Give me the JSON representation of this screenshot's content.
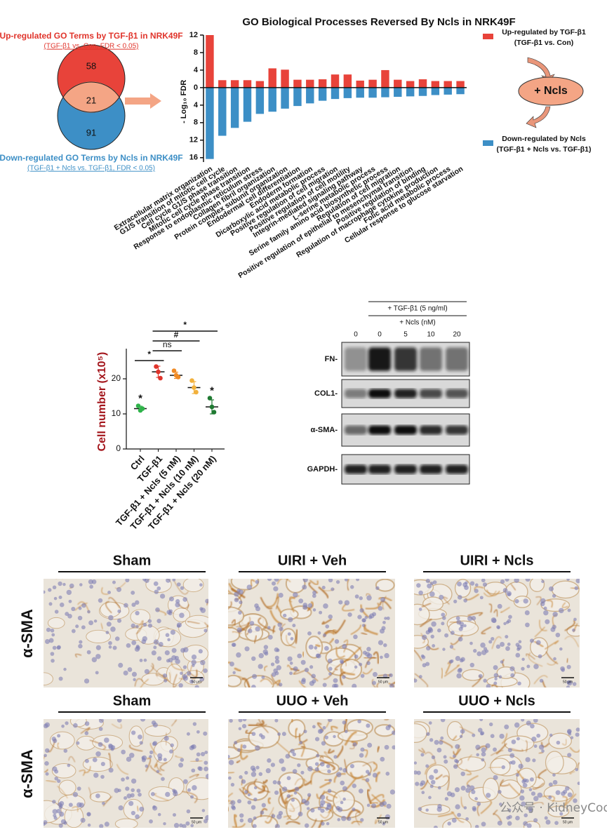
{
  "venn": {
    "up_title": "Up-regulated GO Terms by TGF-β1 in NRK49F",
    "up_subtitle": "(TGF-β1 vs. Con, FDR < 0.05)",
    "down_title": "Down-regulated GO Terms by Ncls in NRK49F",
    "down_subtitle": "(TGF-β1 + Ncls vs. TGF-β1, FDR < 0.05)",
    "counts": [
      58,
      21,
      91
    ]
  },
  "treatment_label": "+ Ncls",
  "chart_data": [
    {
      "type": "bar",
      "title": "GO Biological Processes Reversed By Ncls in NRK49F",
      "ylabel": "- Log₁₀ FDR",
      "categories": [
        "Extracellular matrix organization",
        "G1/S transition of mitotic cell cycle",
        "Cell cycle G1/S phase transition",
        "Mitotic cell cycle phase transition",
        "Response to endoplasmic reticulum stress",
        "Collagen fibril organization",
        "Protein complex subunit organization",
        "Endodermal cell differentiation",
        "Endoderm formation",
        "Dicarboxylic acid metabolic process",
        "Positive regulation of cell migration",
        "Positive regulation of cell motility",
        "Integrin-mediated signaling pathway",
        "L-serine metabolic process",
        "Serine family amino acid biosynthetic process",
        "Regulation of cell migration",
        "Positive regulation of epithelial to mesenchymal transition",
        "Positive regulation of binding",
        "Regulation of macrophage cytokine production",
        "Folic acid metabolic process",
        "Cellular response to glucose starvation"
      ],
      "series": [
        {
          "name": "Up-regulated by TGF-β1",
          "detail": "(TGF-β1 vs. Con)",
          "color": "#e8433a",
          "values": [
            12,
            1.7,
            1.7,
            1.7,
            1.5,
            4.4,
            4.1,
            1.8,
            1.8,
            1.9,
            3.0,
            3.0,
            1.6,
            1.8,
            4.0,
            1.8,
            1.5,
            1.9,
            1.5,
            1.5,
            1.5
          ]
        },
        {
          "name": "Down-regulated by Ncls",
          "detail": "(TGF-β1 + Ncls vs. TGF-β1)",
          "color": "#3d8fc6",
          "values": [
            -16.3,
            -11,
            -9.2,
            -7.8,
            -6,
            -5.5,
            -4.8,
            -4.2,
            -3.6,
            -3.0,
            -2.6,
            -2.4,
            -2.3,
            -2.3,
            -2.2,
            -2.1,
            -2.0,
            -1.9,
            -1.7,
            -1.6,
            -1.5
          ]
        }
      ],
      "ylim": [
        -17,
        12
      ],
      "yticks": [
        12,
        8,
        4,
        0,
        {
          "value": -4,
          "label": "4"
        },
        {
          "value": -8,
          "label": "8"
        },
        {
          "value": -12,
          "label": "12"
        },
        {
          "value": -16,
          "label": "16"
        }
      ]
    },
    {
      "type": "strip",
      "ylabel": "Cell number (x10⁵)",
      "categories": [
        "Ctrl",
        "TGF-β1",
        "TGF-β1 + Ncls (5 nM)",
        "TGF-β1 + Ncls (10 nM)",
        "TGF-β1 + Ncls (20 nM)"
      ],
      "colors": [
        "#2fb34a",
        "#e0342b",
        "#f08a24",
        "#f2b13c",
        "#1f7a32"
      ],
      "points": [
        [
          12.3,
          11.0,
          11.5
        ],
        [
          23.5,
          22.0,
          20.2
        ],
        [
          22.3,
          21.0,
          20.5
        ],
        [
          19.5,
          17.5,
          16.2
        ],
        [
          14.5,
          12.0,
          10.5
        ]
      ],
      "means": [
        11.5,
        22,
        21,
        17.5,
        12
      ],
      "sd": [
        0.7,
        1.6,
        0.9,
        1.7,
        2.0
      ],
      "point_labels": [
        "*",
        null,
        null,
        null,
        "*"
      ],
      "brackets": [
        {
          "label": "*",
          "between": [
            "Ctrl",
            "TGF-β1"
          ]
        },
        {
          "label": "ns",
          "between": [
            "TGF-β1",
            "TGF-β1 + Ncls (5 nM)"
          ]
        },
        {
          "label": "#",
          "between": [
            "TGF-β1",
            "TGF-β1 + Ncls (10 nM)"
          ]
        },
        {
          "label": "*",
          "between": [
            "TGF-β1",
            "TGF-β1 + Ncls (20 nM)"
          ]
        }
      ],
      "ylim": [
        0,
        27
      ],
      "yticks": [
        0,
        10,
        20
      ]
    }
  ],
  "blot": {
    "treatment": "+ TGF-β1 (5 ng/ml)",
    "dose_header": "+ Ncls (nM)",
    "lanes": [
      "0",
      "0",
      "5",
      "10",
      "20"
    ],
    "rows": [
      "FN-",
      "COL1-",
      "α-SMA-",
      "GAPDH-"
    ]
  },
  "histology": {
    "rows": [
      {
        "label": "α-SMA",
        "panels": [
          "Sham",
          "UIRI + Veh",
          "UIRI + Ncls"
        ]
      },
      {
        "label": "α-SMA",
        "panels": [
          "Sham",
          "UUO + Veh",
          "UUO + Ncls"
        ]
      }
    ],
    "scale_label": "50 μm"
  },
  "watermark": "公众号 · KidneyCode"
}
